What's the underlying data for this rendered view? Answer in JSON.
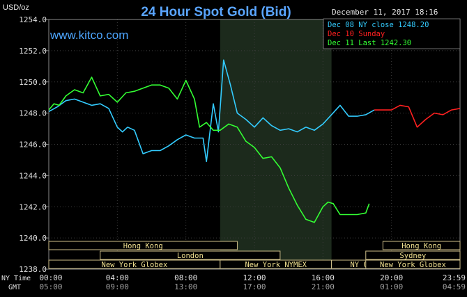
{
  "header": {
    "title": "24 Hour Spot Gold (Bid)",
    "unit": "USD/oz",
    "site": "www.kitco.com",
    "datetime": "December 11, 2017 18:16"
  },
  "legend": [
    {
      "label": "Dec 08 NY close 1248.20",
      "color": "#33ccff"
    },
    {
      "label": "Dec 10 Sunday",
      "color": "#ff2020"
    },
    {
      "label": "Dec 11 Last 1242.30",
      "color": "#33ff33"
    }
  ],
  "time_rows": {
    "ny_label": "NY Time",
    "gmt_label": "GMT",
    "ny_ticks": [
      "00:00",
      "04:00",
      "08:00",
      "12:00",
      "16:00",
      "20:00",
      "23:59"
    ],
    "gmt_ticks": [
      "05:00",
      "09:00",
      "13:00",
      "17:00",
      "21:00",
      "01:00",
      "04:59"
    ]
  },
  "sessions": [
    {
      "label": "Hong Kong",
      "start": 0,
      "end": 11,
      "row": 0
    },
    {
      "label": "London",
      "start": 3,
      "end": 13.5,
      "row": 1
    },
    {
      "label": "New York Globex",
      "start": 0,
      "end": 10,
      "row": 2
    },
    {
      "label": "New York NYMEX",
      "start": 10,
      "end": 16.5,
      "row": 2
    },
    {
      "label": "NY Globex",
      "start": 16.5,
      "end": 21,
      "row": 2
    },
    {
      "label": "Hong Kong",
      "start": 19.5,
      "end": 24,
      "row": 0
    },
    {
      "label": "Sydney",
      "start": 18.5,
      "end": 24,
      "row": 1
    },
    {
      "label": "New York Globex",
      "start": 18.5,
      "end": 24,
      "row": 2
    }
  ],
  "nymex_shade": {
    "start": 10,
    "end": 16.5
  },
  "chart_data": {
    "type": "line",
    "title": "24 Hour Spot Gold (Bid)",
    "ylabel": "USD/oz",
    "ylim": [
      1238.0,
      1254.0
    ],
    "xlim": [
      0,
      24
    ],
    "y_ticks": [
      "1254.0",
      "1252.0",
      "1250.0",
      "1248.0",
      "1246.0",
      "1244.0",
      "1242.0",
      "1240.0",
      "1238.0"
    ],
    "grid": true,
    "series": [
      {
        "name": "Dec 08 NY close 1248.20",
        "color": "#33ccff",
        "x": [
          0,
          0.5,
          1,
          1.5,
          2,
          2.5,
          3,
          3.5,
          4,
          4.3,
          4.6,
          5,
          5.5,
          6,
          6.5,
          7,
          7.5,
          8,
          8.5,
          9,
          9.2,
          9.6,
          9.9,
          10.2,
          10.6,
          11,
          11.5,
          12,
          12.5,
          13,
          13.5,
          14,
          14.5,
          15,
          15.5,
          16,
          16.5,
          17,
          17.5,
          18,
          18.5,
          19
        ],
        "y": [
          1248.1,
          1248.4,
          1248.8,
          1248.9,
          1248.7,
          1248.5,
          1248.6,
          1248.3,
          1247.1,
          1246.8,
          1247.1,
          1246.9,
          1245.4,
          1245.6,
          1245.6,
          1245.9,
          1246.3,
          1246.6,
          1246.4,
          1246.4,
          1244.9,
          1248.6,
          1246.8,
          1251.4,
          1249.8,
          1248.0,
          1247.6,
          1247.1,
          1247.7,
          1247.2,
          1246.9,
          1247.0,
          1246.8,
          1247.1,
          1246.9,
          1247.3,
          1247.9,
          1248.5,
          1247.8,
          1247.8,
          1247.9,
          1248.2
        ]
      },
      {
        "name": "Dec 10 Sunday",
        "color": "#ff2020",
        "x": [
          19,
          20,
          20.5,
          21,
          21.5,
          22,
          22.5,
          23,
          23.5,
          24
        ],
        "y": [
          1248.2,
          1248.2,
          1248.5,
          1248.4,
          1247.1,
          1247.6,
          1248.0,
          1247.9,
          1248.2,
          1248.3
        ]
      },
      {
        "name": "Dec 11 Last 1242.30",
        "color": "#33ff33",
        "x": [
          0,
          0.3,
          0.6,
          1,
          1.5,
          2,
          2.5,
          3,
          3.5,
          4,
          4.5,
          5,
          5.5,
          6,
          6.5,
          7,
          7.5,
          8,
          8.5,
          8.8,
          9.2,
          9.6,
          10,
          10.5,
          11,
          11.5,
          12,
          12.5,
          13,
          13.5,
          14,
          14.5,
          15,
          15.5,
          15.8,
          16,
          16.3,
          16.6,
          17,
          17.5,
          18,
          18.5,
          18.7
        ],
        "y": [
          1248.2,
          1248.6,
          1248.5,
          1249.1,
          1249.5,
          1249.3,
          1250.3,
          1249.1,
          1249.2,
          1248.7,
          1249.3,
          1249.4,
          1249.6,
          1249.8,
          1249.8,
          1249.6,
          1248.9,
          1250.1,
          1248.9,
          1247.1,
          1247.4,
          1246.9,
          1246.9,
          1247.3,
          1247.1,
          1246.2,
          1245.8,
          1245.1,
          1245.2,
          1244.5,
          1243.2,
          1242.1,
          1241.2,
          1241.0,
          1241.6,
          1242.0,
          1242.3,
          1242.2,
          1241.5,
          1241.5,
          1241.5,
          1241.6,
          1242.2
        ]
      }
    ]
  }
}
